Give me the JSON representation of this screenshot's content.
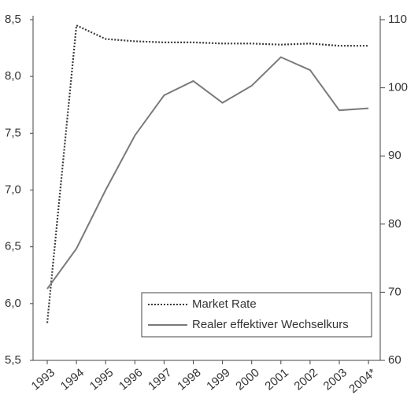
{
  "chart_data": {
    "type": "line",
    "categories": [
      "1993",
      "1994",
      "1995",
      "1996",
      "1997",
      "1998",
      "1999",
      "2000",
      "2001",
      "2002",
      "2003",
      "2004*"
    ],
    "series": [
      {
        "name": "Market Rate",
        "color": "#3a3a3a",
        "dash": true,
        "axis": "y",
        "values": [
          5.83,
          8.45,
          8.33,
          8.31,
          8.3,
          8.3,
          8.29,
          8.29,
          8.28,
          8.29,
          8.27,
          8.27
        ]
      },
      {
        "name": "Realer effektiver Wechselkurs",
        "color": "#7a7a7a",
        "dash": false,
        "axis": "y2",
        "values": [
          70.5,
          76.4,
          85,
          93,
          98.9,
          101,
          97.8,
          100.3,
          104.5,
          102.6,
          96.7,
          97
        ]
      }
    ],
    "ylim": [
      5.5,
      8.5
    ],
    "yticks": [
      {
        "value": 5.5,
        "label": "5,5"
      },
      {
        "value": 6,
        "label": "6,0"
      },
      {
        "value": 6.5,
        "label": "6,5"
      },
      {
        "value": 7,
        "label": "7,0"
      },
      {
        "value": 7.5,
        "label": "7,5"
      },
      {
        "value": 8,
        "label": "8,0"
      },
      {
        "value": 8.5,
        "label": "8,5"
      }
    ],
    "y2lim": [
      60,
      110
    ],
    "y2ticks": [
      60,
      70,
      80,
      90,
      100,
      110
    ],
    "legend": "lower right"
  }
}
